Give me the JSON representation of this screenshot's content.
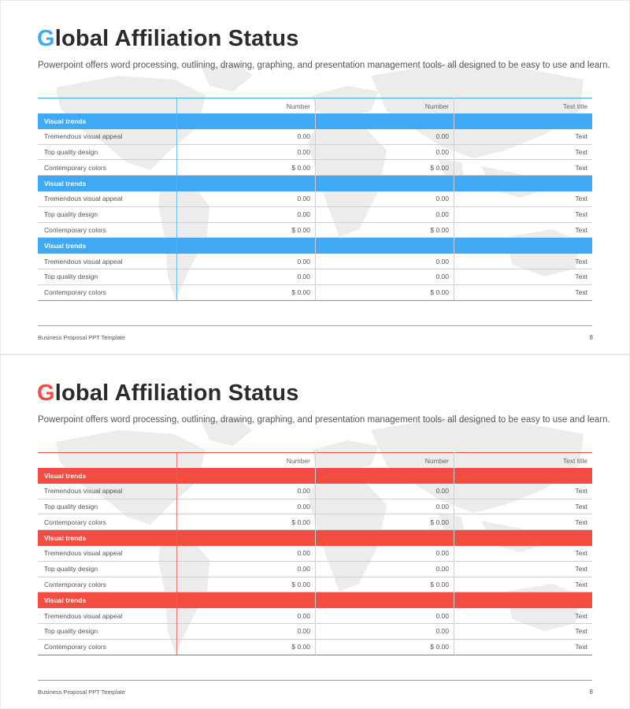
{
  "slides": [
    {
      "accent": "#3fa9f5",
      "title_first": "G",
      "title_rest": "lobal Affiliation Status",
      "subtitle": "Powerpoint offers word processing, outlining, drawing, graphing, and presentation management tools- all designed to be easy to use and learn.",
      "columns": [
        "",
        "Number",
        "Number",
        "Text title"
      ],
      "groups": [
        {
          "label": "Visual trends",
          "rows": [
            [
              "Tremendous visual appeal",
              "0.00",
              "0.00",
              "Text"
            ],
            [
              "Top quality design",
              "0.00",
              "0.00",
              "Text"
            ],
            [
              "Contemporary colors",
              "$ 0.00",
              "$ 0.00",
              "Text"
            ]
          ]
        },
        {
          "label": "Visual trends",
          "rows": [
            [
              "Tremendous visual appeal",
              "0.00",
              "0.00",
              "Text"
            ],
            [
              "Top quality design",
              "0.00",
              "0.00",
              "Text"
            ],
            [
              "Contemporary colors",
              "$ 0.00",
              "$ 0.00",
              "Text"
            ]
          ]
        },
        {
          "label": "Visual trends",
          "rows": [
            [
              "Tremendous visual appeal",
              "0.00",
              "0.00",
              "Text"
            ],
            [
              "Top quality design",
              "0.00",
              "0.00",
              "Text"
            ],
            [
              "Contemporary colors",
              "$ 0.00",
              "$ 0.00",
              "Text"
            ]
          ]
        }
      ],
      "footer": "Business Proposal PPT Template",
      "page": "8"
    },
    {
      "accent": "#f44b43",
      "title_first": "G",
      "title_rest": "lobal Affiliation Status",
      "subtitle": "Powerpoint offers word processing, outlining, drawing, graphing, and presentation management tools- all designed to be easy to use and learn.",
      "columns": [
        "",
        "Number",
        "Number",
        "Text title"
      ],
      "groups": [
        {
          "label": "Visual trends",
          "rows": [
            [
              "Tremendous visual appeal",
              "0.00",
              "0.00",
              "Text"
            ],
            [
              "Top quality design",
              "0.00",
              "0.00",
              "Text"
            ],
            [
              "Contemporary colors",
              "$ 0.00",
              "$ 0.00",
              "Text"
            ]
          ]
        },
        {
          "label": "Visual trends",
          "rows": [
            [
              "Tremendous visual appeal",
              "0.00",
              "0.00",
              "Text"
            ],
            [
              "Top quality design",
              "0.00",
              "0.00",
              "Text"
            ],
            [
              "Contemporary colors",
              "$ 0.00",
              "$ 0.00",
              "Text"
            ]
          ]
        },
        {
          "label": "Visual trends",
          "rows": [
            [
              "Tremendous visual appeal",
              "0.00",
              "0.00",
              "Text"
            ],
            [
              "Top quality design",
              "0.00",
              "0.00",
              "Text"
            ],
            [
              "Contemporary colors",
              "$ 0.00",
              "$ 0.00",
              "Text"
            ]
          ]
        }
      ],
      "footer": "Business Proposal PPT Template",
      "page": "8"
    }
  ]
}
